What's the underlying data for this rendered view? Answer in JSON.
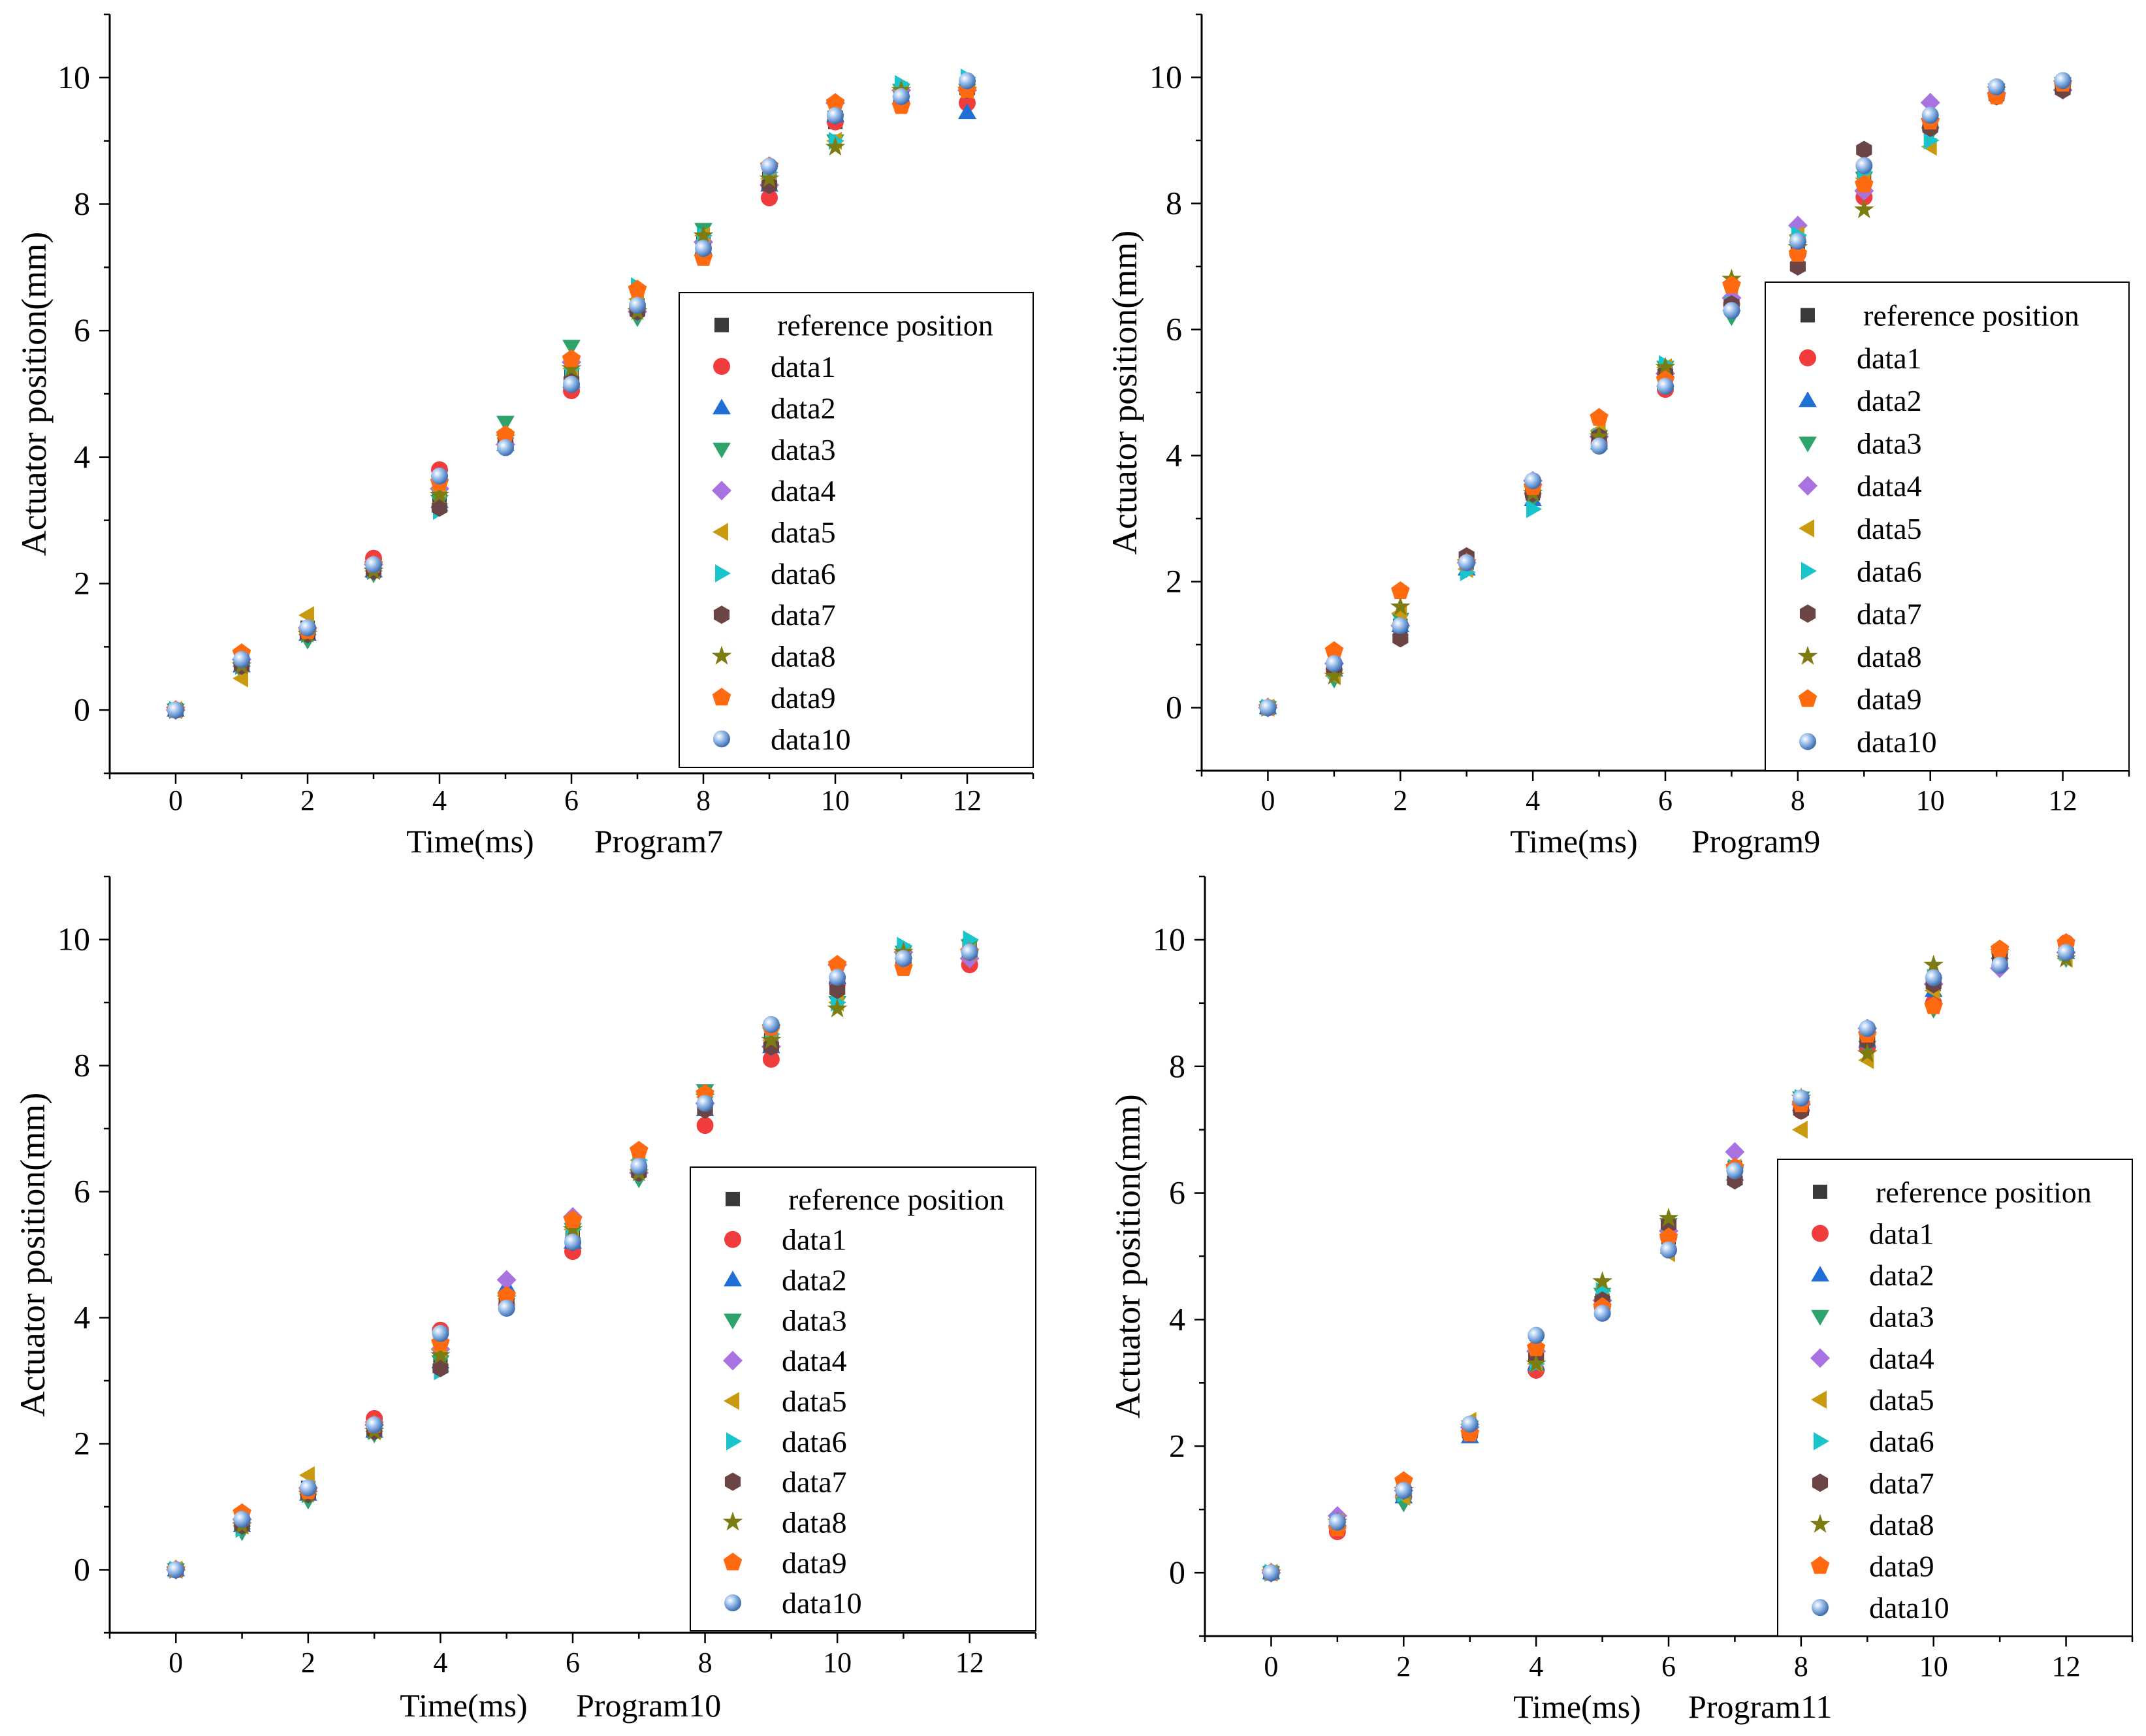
{
  "series_styles": [
    {
      "name": "reference position",
      "shape": "square",
      "color": "#3a3a3a"
    },
    {
      "name": "data1",
      "shape": "circle",
      "color": "#f03c3c"
    },
    {
      "name": "data2",
      "shape": "triangle-up",
      "color": "#1f6fd6"
    },
    {
      "name": "data3",
      "shape": "triangle-down",
      "color": "#2ea36b"
    },
    {
      "name": "data4",
      "shape": "diamond",
      "color": "#a872e0"
    },
    {
      "name": "data5",
      "shape": "triangle-left",
      "color": "#c99a10"
    },
    {
      "name": "data6",
      "shape": "triangle-right",
      "color": "#19c4cc"
    },
    {
      "name": "data7",
      "shape": "hexagon",
      "color": "#6b4545"
    },
    {
      "name": "data8",
      "shape": "star",
      "color": "#7c7c12"
    },
    {
      "name": "data9",
      "shape": "pentagon",
      "color": "#ff6a10"
    },
    {
      "name": "data10",
      "shape": "sphere",
      "color": "#6f9fd8"
    }
  ],
  "chart_data": [
    {
      "type": "scatter",
      "title": "",
      "xlabel": "Time(ms)",
      "program_label": "Program7",
      "ylabel": "Actuator position(mm)",
      "xlim": [
        -1,
        13
      ],
      "ylim": [
        -1,
        11
      ],
      "xticks": [
        0,
        2,
        4,
        6,
        8,
        10,
        12
      ],
      "yticks": [
        0,
        2,
        4,
        6,
        8,
        10
      ],
      "grid": false,
      "legend_position": "right-middle",
      "x": [
        0,
        1,
        2,
        3,
        4,
        5,
        6,
        7,
        8,
        9,
        10,
        11,
        12
      ],
      "series": [
        {
          "name": "reference position",
          "values": [
            0,
            0.8,
            1.3,
            2.2,
            3.4,
            4.3,
            5.3,
            6.4,
            7.4,
            8.4,
            9.3,
            9.7,
            9.9
          ]
        },
        {
          "name": "data1",
          "values": [
            0,
            0.75,
            1.25,
            2.4,
            3.8,
            4.2,
            5.05,
            6.35,
            7.2,
            8.1,
            9.3,
            9.6,
            9.6
          ]
        },
        {
          "name": "data2",
          "values": [
            0,
            0.7,
            1.2,
            2.2,
            3.3,
            4.2,
            5.2,
            6.4,
            7.3,
            8.3,
            9.4,
            9.8,
            9.45
          ]
        },
        {
          "name": "data3",
          "values": [
            0,
            0.6,
            1.1,
            2.15,
            3.3,
            4.55,
            5.75,
            6.2,
            7.6,
            8.5,
            9.0,
            9.8,
            9.8
          ]
        },
        {
          "name": "data4",
          "values": [
            0,
            0.8,
            1.3,
            2.3,
            3.5,
            4.2,
            5.5,
            6.3,
            7.4,
            8.3,
            9.6,
            9.8,
            9.8
          ]
        },
        {
          "name": "data5",
          "values": [
            0,
            0.5,
            1.5,
            2.2,
            3.5,
            4.3,
            5.4,
            6.5,
            7.5,
            8.4,
            9.0,
            9.8,
            9.8
          ]
        },
        {
          "name": "data6",
          "values": [
            0,
            0.7,
            1.2,
            2.2,
            3.15,
            4.3,
            5.4,
            6.7,
            7.5,
            8.5,
            9.0,
            9.9,
            10.0
          ]
        },
        {
          "name": "data7",
          "values": [
            0,
            0.7,
            1.2,
            2.2,
            3.2,
            4.3,
            5.2,
            6.3,
            7.3,
            8.3,
            9.4,
            9.7,
            9.8
          ]
        },
        {
          "name": "data8",
          "values": [
            0,
            0.7,
            1.2,
            2.2,
            3.4,
            4.3,
            5.4,
            6.3,
            7.5,
            8.4,
            8.9,
            9.8,
            9.8
          ]
        },
        {
          "name": "data9",
          "values": [
            0,
            0.9,
            1.25,
            2.3,
            3.6,
            4.35,
            5.55,
            6.65,
            7.15,
            8.6,
            9.6,
            9.55,
            9.8
          ]
        },
        {
          "name": "data10",
          "values": [
            0,
            0.8,
            1.3,
            2.3,
            3.7,
            4.15,
            5.15,
            6.4,
            7.3,
            8.6,
            9.4,
            9.7,
            9.95
          ]
        }
      ]
    },
    {
      "type": "scatter",
      "title": "",
      "xlabel": "Time(ms)",
      "program_label": "Program9",
      "ylabel": "Actuator position(mm)",
      "xlim": [
        -1,
        13
      ],
      "ylim": [
        -1,
        11
      ],
      "xticks": [
        0,
        2,
        4,
        6,
        8,
        10,
        12
      ],
      "yticks": [
        0,
        2,
        4,
        6,
        8,
        10
      ],
      "grid": false,
      "legend_position": "right-middle",
      "x": [
        0,
        1,
        2,
        3,
        4,
        5,
        6,
        7,
        8,
        9,
        10,
        11,
        12
      ],
      "series": [
        {
          "name": "reference position",
          "values": [
            0,
            0.6,
            1.3,
            2.3,
            3.4,
            4.3,
            5.3,
            6.4,
            7.3,
            8.4,
            9.3,
            9.75,
            9.9
          ]
        },
        {
          "name": "data1",
          "values": [
            0,
            0.6,
            1.3,
            2.3,
            3.4,
            4.2,
            5.05,
            6.4,
            7.2,
            8.1,
            9.2,
            9.7,
            9.9
          ]
        },
        {
          "name": "data2",
          "values": [
            0,
            0.6,
            1.3,
            2.2,
            3.3,
            4.2,
            5.2,
            6.4,
            7.3,
            8.3,
            9.3,
            9.8,
            9.9
          ]
        },
        {
          "name": "data3",
          "values": [
            0,
            0.45,
            1.4,
            2.2,
            3.3,
            4.3,
            5.4,
            6.2,
            7.4,
            8.4,
            9.1,
            9.8,
            9.9
          ]
        },
        {
          "name": "data4",
          "values": [
            0,
            0.7,
            1.3,
            2.3,
            3.6,
            4.3,
            5.3,
            6.5,
            7.65,
            8.2,
            9.6,
            9.75,
            9.8
          ]
        },
        {
          "name": "data5",
          "values": [
            0,
            0.5,
            1.5,
            2.2,
            3.5,
            4.4,
            5.4,
            6.7,
            7.5,
            8.4,
            8.9,
            9.8,
            9.9
          ]
        },
        {
          "name": "data6",
          "values": [
            0,
            0.6,
            1.3,
            2.15,
            3.15,
            4.3,
            5.45,
            6.4,
            7.5,
            8.5,
            9.0,
            9.8,
            9.9
          ]
        },
        {
          "name": "data7",
          "values": [
            0,
            0.6,
            1.1,
            2.4,
            3.4,
            4.3,
            5.3,
            6.4,
            7.0,
            8.85,
            9.2,
            9.7,
            9.8
          ]
        },
        {
          "name": "data8",
          "values": [
            0,
            0.5,
            1.6,
            2.3,
            3.4,
            4.3,
            5.4,
            6.8,
            7.3,
            7.9,
            9.3,
            9.8,
            9.9
          ]
        },
        {
          "name": "data9",
          "values": [
            0,
            0.9,
            1.85,
            2.3,
            3.5,
            4.6,
            5.2,
            6.7,
            7.2,
            8.3,
            9.3,
            9.7,
            9.9
          ]
        },
        {
          "name": "data10",
          "values": [
            0,
            0.7,
            1.3,
            2.3,
            3.6,
            4.15,
            5.1,
            6.3,
            7.4,
            8.6,
            9.4,
            9.85,
            9.95
          ]
        }
      ]
    },
    {
      "type": "scatter",
      "title": "",
      "xlabel": "Time(ms)",
      "program_label": "Program10",
      "ylabel": "Actuator position(mm)",
      "xlim": [
        -1,
        13
      ],
      "ylim": [
        -1,
        11
      ],
      "xticks": [
        0,
        2,
        4,
        6,
        8,
        10,
        12
      ],
      "yticks": [
        0,
        2,
        4,
        6,
        8,
        10
      ],
      "grid": false,
      "legend_position": "right-bottom",
      "x": [
        0,
        1,
        2,
        3,
        4,
        5,
        6,
        7,
        8,
        9,
        10,
        11,
        12
      ],
      "series": [
        {
          "name": "reference position",
          "values": [
            0,
            0.8,
            1.3,
            2.2,
            3.4,
            4.3,
            5.3,
            6.4,
            7.4,
            8.4,
            9.3,
            9.7,
            9.9
          ]
        },
        {
          "name": "data1",
          "values": [
            0,
            0.75,
            1.25,
            2.4,
            3.8,
            4.2,
            5.05,
            6.35,
            7.05,
            8.1,
            9.3,
            9.6,
            9.6
          ]
        },
        {
          "name": "data2",
          "values": [
            0,
            0.7,
            1.2,
            2.2,
            3.3,
            4.5,
            5.2,
            6.4,
            7.3,
            8.3,
            9.4,
            9.8,
            9.9
          ]
        },
        {
          "name": "data3",
          "values": [
            0,
            0.6,
            1.1,
            2.15,
            3.3,
            4.3,
            5.4,
            6.2,
            7.6,
            8.5,
            9.0,
            9.8,
            9.9
          ]
        },
        {
          "name": "data4",
          "values": [
            0,
            0.8,
            1.3,
            2.3,
            3.5,
            4.6,
            5.6,
            6.3,
            7.4,
            8.3,
            9.6,
            9.8,
            9.7
          ]
        },
        {
          "name": "data5",
          "values": [
            0,
            0.7,
            1.5,
            2.2,
            3.5,
            4.3,
            5.4,
            6.5,
            7.5,
            8.4,
            9.0,
            9.8,
            9.8
          ]
        },
        {
          "name": "data6",
          "values": [
            0,
            0.65,
            1.2,
            2.2,
            3.15,
            4.3,
            5.4,
            6.5,
            7.5,
            8.5,
            9.0,
            9.9,
            10.0
          ]
        },
        {
          "name": "data7",
          "values": [
            0,
            0.7,
            1.2,
            2.2,
            3.2,
            4.3,
            5.2,
            6.3,
            7.3,
            8.3,
            9.2,
            9.7,
            9.8
          ]
        },
        {
          "name": "data8",
          "values": [
            0,
            0.7,
            1.2,
            2.2,
            3.4,
            4.3,
            5.4,
            6.3,
            7.5,
            8.4,
            8.9,
            9.8,
            9.8
          ]
        },
        {
          "name": "data9",
          "values": [
            0,
            0.9,
            1.25,
            2.3,
            3.6,
            4.35,
            5.55,
            6.65,
            7.55,
            8.6,
            9.6,
            9.55,
            9.8
          ]
        },
        {
          "name": "data10",
          "values": [
            0,
            0.8,
            1.3,
            2.3,
            3.75,
            4.15,
            5.2,
            6.4,
            7.4,
            8.65,
            9.4,
            9.7,
            9.8
          ]
        }
      ]
    },
    {
      "type": "scatter",
      "title": "",
      "xlabel": "Time(ms)",
      "program_label": "Program11",
      "ylabel": "Actuator position(mm)",
      "xlim": [
        -1,
        13
      ],
      "ylim": [
        -1,
        11
      ],
      "xticks": [
        0,
        2,
        4,
        6,
        8,
        10,
        12
      ],
      "yticks": [
        0,
        2,
        4,
        6,
        8,
        10
      ],
      "grid": false,
      "legend_position": "right-bottom",
      "x": [
        0,
        1,
        2,
        3,
        4,
        5,
        6,
        7,
        8,
        9,
        10,
        11,
        12
      ],
      "series": [
        {
          "name": "reference position",
          "values": [
            0,
            0.8,
            1.3,
            2.2,
            3.4,
            4.3,
            5.3,
            6.4,
            7.4,
            8.4,
            9.3,
            9.7,
            9.9
          ]
        },
        {
          "name": "data1",
          "values": [
            0,
            0.65,
            1.2,
            2.2,
            3.2,
            4.2,
            5.3,
            6.4,
            7.3,
            8.3,
            9.0,
            9.8,
            9.95
          ]
        },
        {
          "name": "data2",
          "values": [
            0,
            0.8,
            1.2,
            2.15,
            3.3,
            4.3,
            5.4,
            6.3,
            7.4,
            8.4,
            9.2,
            9.8,
            9.8
          ]
        },
        {
          "name": "data3",
          "values": [
            0,
            0.8,
            1.1,
            2.3,
            3.4,
            4.4,
            5.5,
            6.3,
            7.5,
            8.3,
            8.9,
            9.8,
            9.7
          ]
        },
        {
          "name": "data4",
          "values": [
            0,
            0.9,
            1.3,
            2.3,
            3.5,
            4.3,
            5.4,
            6.65,
            7.4,
            8.6,
            9.3,
            9.55,
            9.8
          ]
        },
        {
          "name": "data5",
          "values": [
            0,
            0.8,
            1.2,
            2.4,
            3.3,
            4.3,
            5.05,
            6.4,
            7.0,
            8.1,
            9.2,
            9.8,
            9.7
          ]
        },
        {
          "name": "data6",
          "values": [
            0,
            0.8,
            1.25,
            2.3,
            3.3,
            4.45,
            5.3,
            6.4,
            7.5,
            8.5,
            9.4,
            9.8,
            9.8
          ]
        },
        {
          "name": "data7",
          "values": [
            0,
            0.8,
            1.3,
            2.2,
            3.4,
            4.3,
            5.5,
            6.2,
            7.3,
            8.4,
            9.3,
            9.7,
            9.8
          ]
        },
        {
          "name": "data8",
          "values": [
            0,
            0.8,
            1.3,
            2.3,
            3.3,
            4.6,
            5.6,
            6.4,
            7.5,
            8.2,
            9.6,
            9.8,
            9.7
          ]
        },
        {
          "name": "data9",
          "values": [
            0,
            0.7,
            1.45,
            2.2,
            3.55,
            4.2,
            5.3,
            6.4,
            7.4,
            8.5,
            8.95,
            9.85,
            9.95
          ]
        },
        {
          "name": "data10",
          "values": [
            0,
            0.8,
            1.3,
            2.35,
            3.75,
            4.1,
            5.1,
            6.35,
            7.5,
            8.6,
            9.4,
            9.6,
            9.8
          ]
        }
      ]
    }
  ]
}
